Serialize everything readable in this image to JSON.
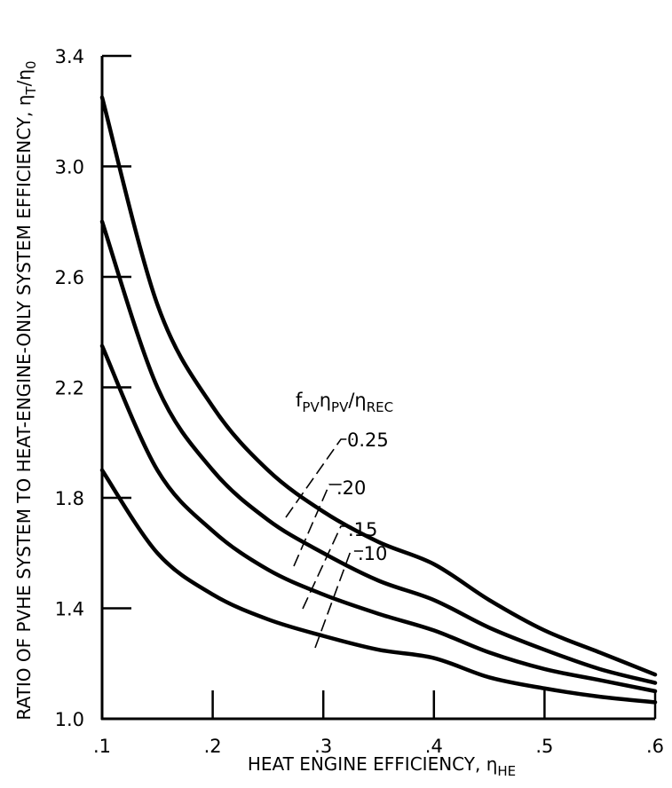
{
  "chart_data": {
    "type": "line",
    "title": "",
    "xlabel": "HEAT ENGINE EFFICIENCY, η",
    "xlabel_subscript": "HE",
    "ylabel": "RATIO OF PVHE SYSTEM TO HEAT-ENGINE-ONLY SYSTEM EFFICIENCY, η",
    "ylabel_sub1": "T",
    "ylabel_mid": "/η",
    "ylabel_sub2": "0",
    "xlim": [
      0.1,
      0.6
    ],
    "ylim": [
      1.0,
      3.4
    ],
    "grid": false,
    "x_ticks": [
      0.1,
      0.2,
      0.3,
      0.4,
      0.5,
      0.6
    ],
    "x_tick_labels": [
      ".1",
      ".2",
      ".3",
      ".4",
      ".5",
      ".6"
    ],
    "y_ticks": [
      1.0,
      1.4,
      1.8,
      2.2,
      2.6,
      3.0,
      3.4
    ],
    "y_tick_labels": [
      "1.0",
      "1.4",
      "1.8",
      "2.2",
      "2.6",
      "3.0",
      "3.4"
    ],
    "legend_title_parts": [
      {
        "text": "f",
        "sub": false
      },
      {
        "text": "PV",
        "sub": true
      },
      {
        "text": "η",
        "sub": false
      },
      {
        "text": "PV",
        "sub": true
      },
      {
        "text": "/η",
        "sub": false
      },
      {
        "text": "REC",
        "sub": true
      }
    ],
    "series": [
      {
        "name": "0.25",
        "param": 0.25,
        "label": "0.25",
        "x": [
          0.1,
          0.15,
          0.2,
          0.25,
          0.3,
          0.35,
          0.4,
          0.45,
          0.5,
          0.55,
          0.6
        ],
        "y": [
          3.25,
          2.5,
          2.13,
          1.9,
          1.75,
          1.64,
          1.56,
          1.43,
          1.32,
          1.24,
          1.16
        ]
      },
      {
        "name": "0.20",
        "param": 0.2,
        "label": ".20",
        "x": [
          0.1,
          0.15,
          0.2,
          0.25,
          0.3,
          0.35,
          0.4,
          0.45,
          0.5,
          0.55,
          0.6
        ],
        "y": [
          2.8,
          2.2,
          1.9,
          1.72,
          1.6,
          1.5,
          1.43,
          1.33,
          1.25,
          1.18,
          1.13
        ]
      },
      {
        "name": "0.15",
        "param": 0.15,
        "label": ".15",
        "x": [
          0.1,
          0.15,
          0.2,
          0.25,
          0.3,
          0.35,
          0.4,
          0.45,
          0.5,
          0.55,
          0.6
        ],
        "y": [
          2.35,
          1.9,
          1.68,
          1.54,
          1.45,
          1.38,
          1.32,
          1.24,
          1.18,
          1.14,
          1.1
        ]
      },
      {
        "name": "0.10",
        "param": 0.1,
        "label": ".10",
        "x": [
          0.1,
          0.15,
          0.2,
          0.25,
          0.3,
          0.35,
          0.4,
          0.45,
          0.5,
          0.55,
          0.6
        ],
        "y": [
          1.9,
          1.6,
          1.45,
          1.36,
          1.3,
          1.25,
          1.22,
          1.15,
          1.11,
          1.08,
          1.06
        ]
      }
    ]
  }
}
